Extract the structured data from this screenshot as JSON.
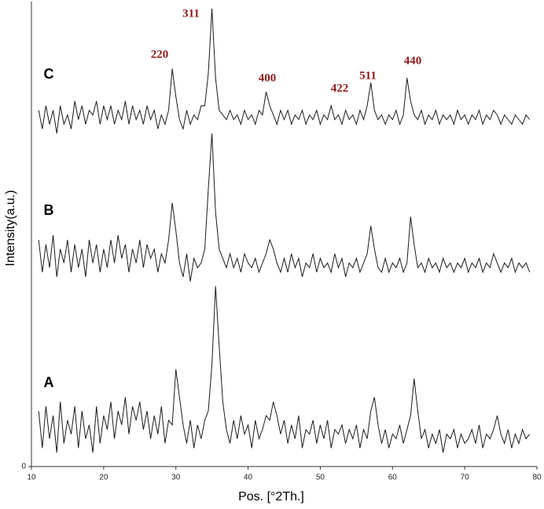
{
  "chart_data": {
    "type": "line",
    "x_label": "Pos. [°2Th.]",
    "y_label": "Intensity(a.u.)",
    "xlim": [
      10,
      80
    ],
    "xticks": [
      10,
      20,
      30,
      40,
      50,
      60,
      70,
      80
    ],
    "ylim": [
      0,
      100
    ],
    "yticks": [
      0
    ],
    "peak_labels": [
      "220",
      "311",
      "400",
      "422",
      "511",
      "440"
    ],
    "peak_label_color": "#8b1a1a",
    "x": [
      11,
      11.5,
      12,
      12.5,
      13,
      13.5,
      14,
      14.5,
      15,
      15.5,
      16,
      16.5,
      17,
      17.5,
      18,
      18.5,
      19,
      19.5,
      20,
      20.5,
      21,
      21.5,
      22,
      22.5,
      23,
      23.5,
      24,
      24.5,
      25,
      25.5,
      26,
      26.5,
      27,
      27.5,
      28,
      28.5,
      29,
      29.5,
      30,
      30.5,
      31,
      31.5,
      32,
      32.5,
      33,
      33.5,
      34,
      34.5,
      35,
      35.5,
      36,
      36.5,
      37,
      37.5,
      38,
      38.5,
      39,
      39.5,
      40,
      40.5,
      41,
      41.5,
      42,
      42.5,
      43,
      43.5,
      44,
      44.5,
      45,
      45.5,
      46,
      46.5,
      47,
      47.5,
      48,
      48.5,
      49,
      49.5,
      50,
      50.5,
      51,
      51.5,
      52,
      52.5,
      53,
      53.5,
      54,
      54.5,
      55,
      55.5,
      56,
      56.5,
      57,
      57.5,
      58,
      58.5,
      59,
      59.5,
      60,
      60.5,
      61,
      61.5,
      62,
      62.5,
      63,
      63.5,
      64,
      64.5,
      65,
      65.5,
      66,
      66.5,
      67,
      67.5,
      68,
      68.5,
      69,
      69.5,
      70,
      70.5,
      71,
      71.5,
      72,
      72.5,
      73,
      73.5,
      74,
      74.5,
      75,
      75.5,
      76,
      76.5,
      77,
      77.5,
      78,
      78.5,
      79
    ],
    "series": [
      {
        "name": "A",
        "color": "#1a1a1a",
        "values": [
          12,
          4,
          13,
          6,
          11,
          3,
          14,
          5,
          10,
          7,
          13,
          4,
          12,
          6,
          9,
          3,
          13,
          5,
          11,
          8,
          14,
          6,
          12,
          9,
          15,
          7,
          13,
          10,
          14,
          8,
          12,
          6,
          11,
          7,
          13,
          5,
          10,
          9,
          21,
          15,
          9,
          5,
          10,
          4,
          9,
          6,
          10,
          12,
          22,
          39,
          26,
          14,
          8,
          5,
          10,
          6,
          11,
          7,
          9,
          4,
          10,
          6,
          8,
          11,
          10,
          14,
          11,
          7,
          10,
          5,
          9,
          6,
          11,
          4,
          8,
          7,
          10,
          5,
          9,
          6,
          10,
          4,
          8,
          7,
          9,
          5,
          8,
          6,
          9,
          4,
          8,
          6,
          12,
          15,
          9,
          5,
          8,
          4,
          7,
          6,
          9,
          5,
          8,
          11,
          19,
          12,
          6,
          8,
          4,
          7,
          5,
          8,
          3,
          7,
          6,
          8,
          4,
          7,
          5,
          6,
          8,
          5,
          9,
          4,
          7,
          6,
          8,
          11,
          7,
          5,
          8,
          4,
          7,
          5,
          8,
          6,
          7
        ]
      },
      {
        "name": "B",
        "color": "#1a1a1a",
        "values": [
          49,
          42,
          48,
          43,
          50,
          41,
          47,
          44,
          49,
          42,
          48,
          43,
          47,
          41,
          49,
          44,
          48,
          42,
          47,
          43,
          49,
          44,
          50,
          45,
          48,
          42,
          47,
          44,
          49,
          43,
          48,
          45,
          47,
          42,
          46,
          44,
          49,
          57,
          51,
          44,
          41,
          46,
          40,
          45,
          43,
          44,
          47,
          60,
          72,
          55,
          47,
          45,
          43,
          46,
          43,
          45,
          42,
          46,
          44,
          43,
          45,
          42,
          44,
          46,
          49,
          47,
          44,
          42,
          45,
          42,
          46,
          43,
          45,
          41,
          44,
          43,
          46,
          42,
          45,
          43,
          44,
          42,
          46,
          43,
          45,
          41,
          44,
          43,
          45,
          42,
          44,
          46,
          52,
          47,
          43,
          42,
          45,
          42,
          44,
          43,
          45,
          42,
          44,
          54,
          48,
          43,
          44,
          42,
          45,
          43,
          44,
          42,
          45,
          43,
          44,
          42,
          44,
          43,
          45,
          42,
          44,
          43,
          45,
          42,
          44,
          43,
          46,
          44,
          42,
          44,
          43,
          45,
          42,
          44,
          43,
          44,
          42
        ]
      },
      {
        "name": "C",
        "color": "#1a1a1a",
        "values": [
          77,
          73,
          78,
          74,
          77,
          72,
          78,
          74,
          76,
          73,
          79,
          75,
          78,
          74,
          77,
          76,
          79,
          74,
          78,
          75,
          78,
          74,
          77,
          75,
          79,
          74,
          78,
          75,
          77,
          74,
          78,
          75,
          77,
          73,
          76,
          74,
          77,
          86,
          80,
          75,
          73,
          77,
          74,
          76,
          75,
          78,
          78,
          85,
          99,
          84,
          77,
          76,
          75,
          77,
          75,
          76,
          74,
          77,
          75,
          76,
          74,
          77,
          76,
          81,
          78,
          76,
          74,
          77,
          75,
          77,
          74,
          76,
          75,
          77,
          74,
          76,
          75,
          77,
          74,
          76,
          75,
          78,
          75,
          76,
          74,
          77,
          75,
          76,
          74,
          77,
          75,
          78,
          83,
          77,
          75,
          76,
          74,
          76,
          75,
          77,
          74,
          76,
          84,
          79,
          76,
          75,
          77,
          74,
          76,
          75,
          77,
          74,
          76,
          75,
          76,
          74,
          77,
          75,
          76,
          74,
          76,
          75,
          77,
          74,
          76,
          75,
          77,
          76,
          74,
          76,
          75,
          74,
          76,
          75,
          74,
          76,
          75
        ]
      }
    ]
  }
}
